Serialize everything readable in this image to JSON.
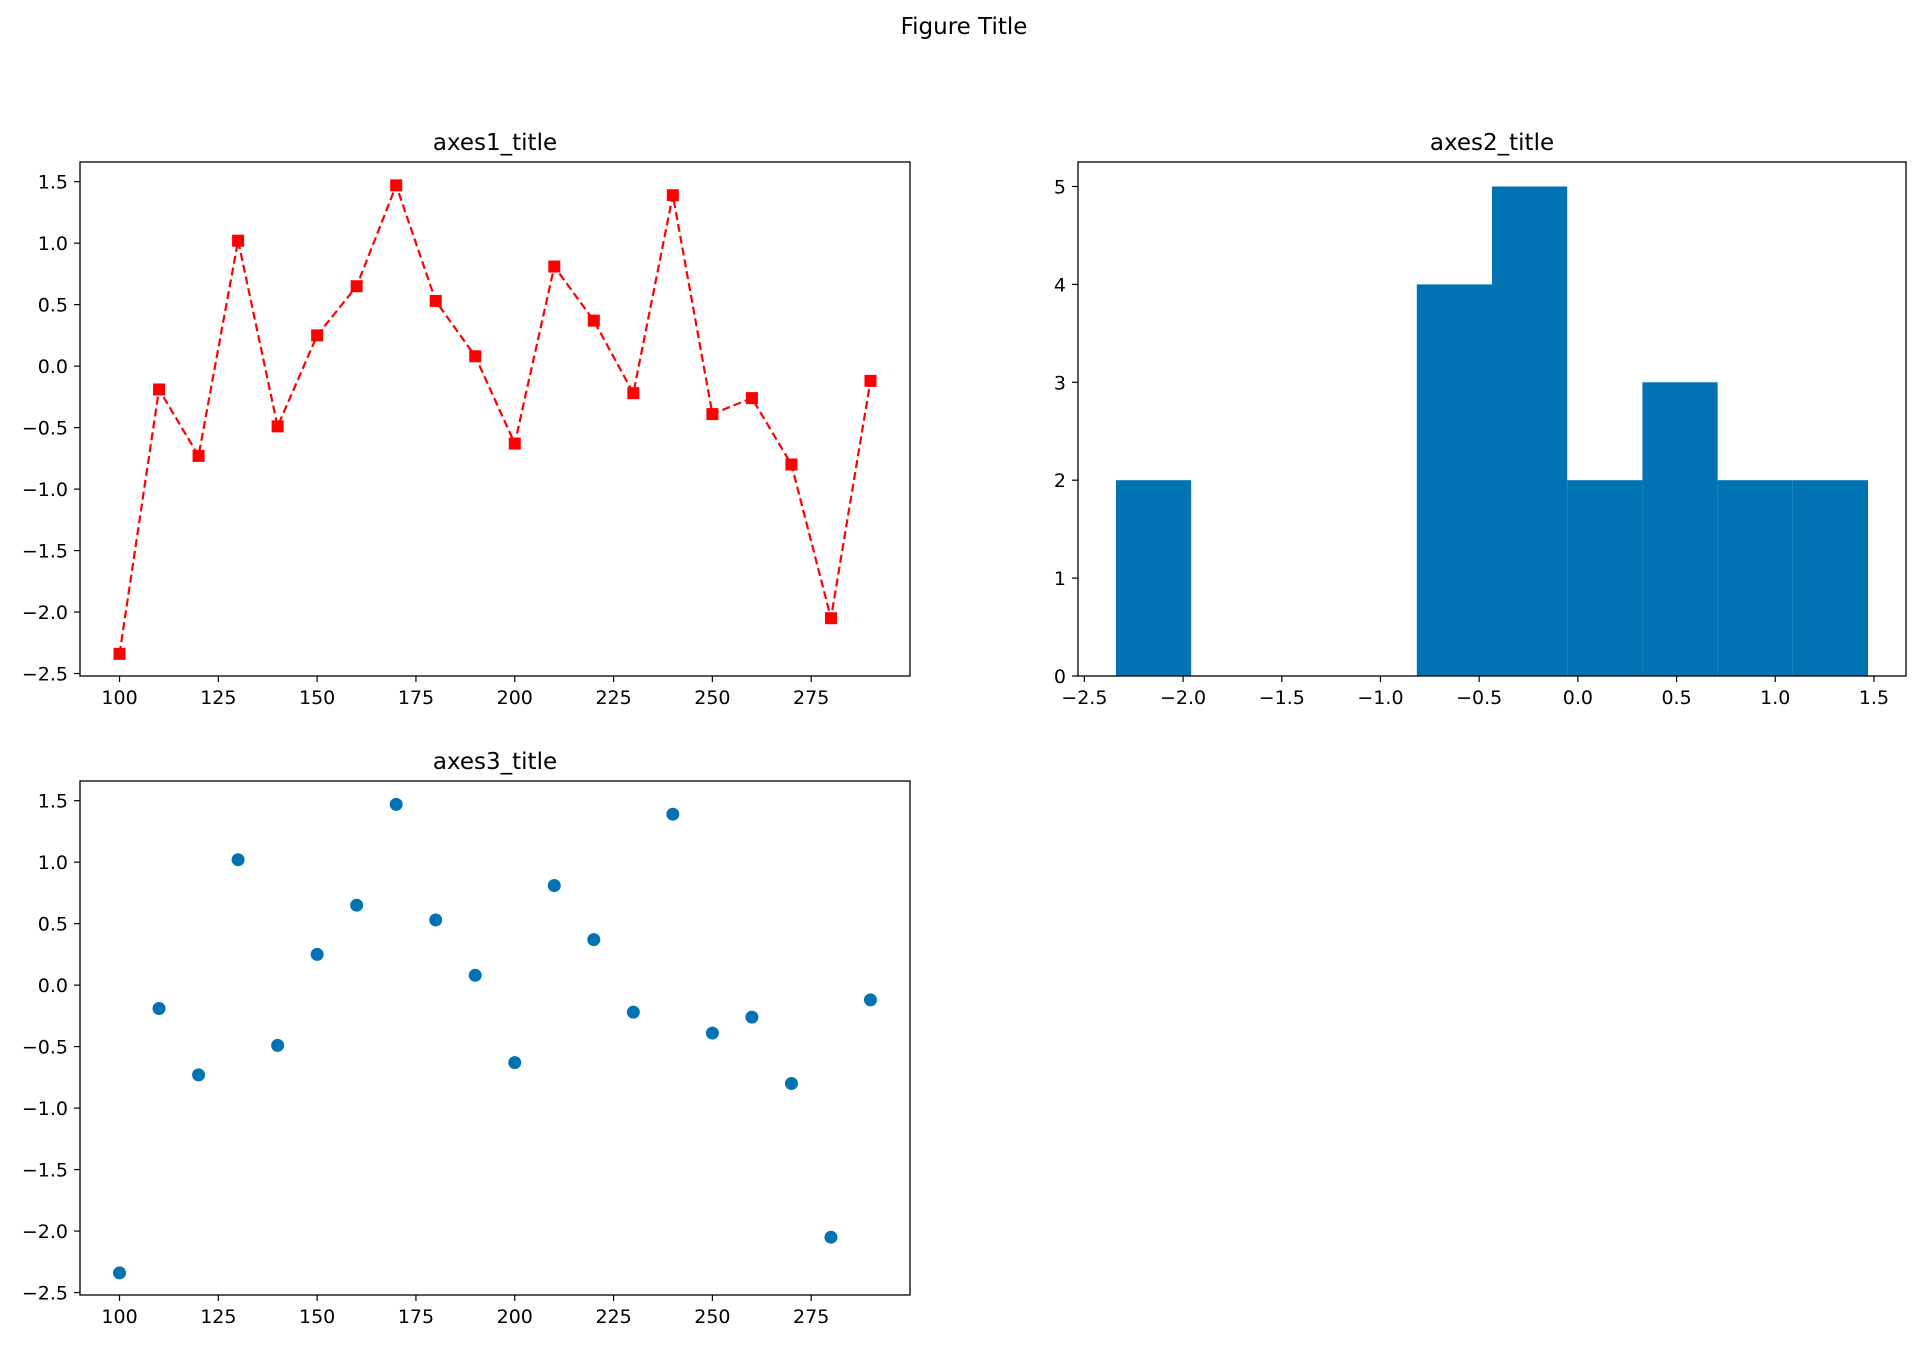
{
  "figure": {
    "title": "Figure Title"
  },
  "chart_data": [
    {
      "type": "line",
      "title": "axes1_title",
      "xlabel": "",
      "ylabel": "",
      "x": [
        100,
        110,
        120,
        130,
        140,
        150,
        160,
        170,
        180,
        190,
        200,
        210,
        220,
        230,
        240,
        250,
        260,
        270,
        280,
        290
      ],
      "y": [
        -2.34,
        -0.19,
        -0.73,
        1.02,
        -0.49,
        0.25,
        0.65,
        1.47,
        0.53,
        0.08,
        -0.63,
        0.81,
        0.37,
        -0.22,
        1.39,
        -0.39,
        -0.26,
        -0.8,
        -2.05,
        -0.12
      ],
      "style": {
        "color": "#ff0000",
        "linestyle": "dashed",
        "marker": "square"
      },
      "xlim": [
        90,
        300
      ],
      "ylim": [
        -2.52,
        1.66
      ],
      "xticks": [
        100,
        125,
        150,
        175,
        200,
        225,
        250,
        275
      ],
      "xtick_labels": [
        "100",
        "125",
        "150",
        "175",
        "200",
        "225",
        "250",
        "275"
      ],
      "yticks": [
        -2.5,
        -2.0,
        -1.5,
        -1.0,
        -0.5,
        0.0,
        0.5,
        1.0,
        1.5
      ],
      "ytick_labels": [
        "−2.5",
        "−2.0",
        "−1.5",
        "−1.0",
        "−0.5",
        "0.0",
        "0.5",
        "1.0",
        "1.5"
      ],
      "grid": false
    },
    {
      "type": "bar",
      "subtype": "histogram",
      "title": "axes2_title",
      "xlabel": "",
      "ylabel": "",
      "bin_edges": [
        -2.34,
        -1.959,
        -1.578,
        -1.197,
        -0.816,
        -0.435,
        -0.054,
        0.327,
        0.708,
        1.089,
        1.47
      ],
      "counts": [
        2,
        0,
        0,
        0,
        4,
        5,
        2,
        3,
        2,
        2
      ],
      "color": "#0173b2",
      "xlim": [
        -2.5323,
        1.6623
      ],
      "ylim": [
        0,
        5.25
      ],
      "xticks": [
        -2.5,
        -2.0,
        -1.5,
        -1.0,
        -0.5,
        0.0,
        0.5,
        1.0,
        1.5
      ],
      "xtick_labels": [
        "−2.5",
        "−2.0",
        "−1.5",
        "−1.0",
        "−0.5",
        "0.0",
        "0.5",
        "1.0",
        "1.5"
      ],
      "yticks": [
        0,
        1,
        2,
        3,
        4,
        5
      ],
      "ytick_labels": [
        "0",
        "1",
        "2",
        "3",
        "4",
        "5"
      ],
      "grid": false
    },
    {
      "type": "scatter",
      "title": "axes3_title",
      "xlabel": "",
      "ylabel": "",
      "x": [
        100,
        110,
        120,
        130,
        140,
        150,
        160,
        170,
        180,
        190,
        200,
        210,
        220,
        230,
        240,
        250,
        260,
        270,
        280,
        290
      ],
      "y": [
        -2.34,
        -0.19,
        -0.73,
        1.02,
        -0.49,
        0.25,
        0.65,
        1.47,
        0.53,
        0.08,
        -0.63,
        0.81,
        0.37,
        -0.22,
        1.39,
        -0.39,
        -0.26,
        -0.8,
        -2.05,
        -0.12
      ],
      "color": "#0173b2",
      "marker": "circle",
      "xlim": [
        90,
        300
      ],
      "ylim": [
        -2.52,
        1.66
      ],
      "xticks": [
        100,
        125,
        150,
        175,
        200,
        225,
        250,
        275
      ],
      "xtick_labels": [
        "100",
        "125",
        "150",
        "175",
        "200",
        "225",
        "250",
        "275"
      ],
      "yticks": [
        -2.5,
        -2.0,
        -1.5,
        -1.0,
        -0.5,
        0.0,
        0.5,
        1.0,
        1.5
      ],
      "ytick_labels": [
        "−2.5",
        "−2.0",
        "−1.5",
        "−1.0",
        "−0.5",
        "0.0",
        "0.5",
        "1.0",
        "1.5"
      ],
      "grid": false
    }
  ]
}
